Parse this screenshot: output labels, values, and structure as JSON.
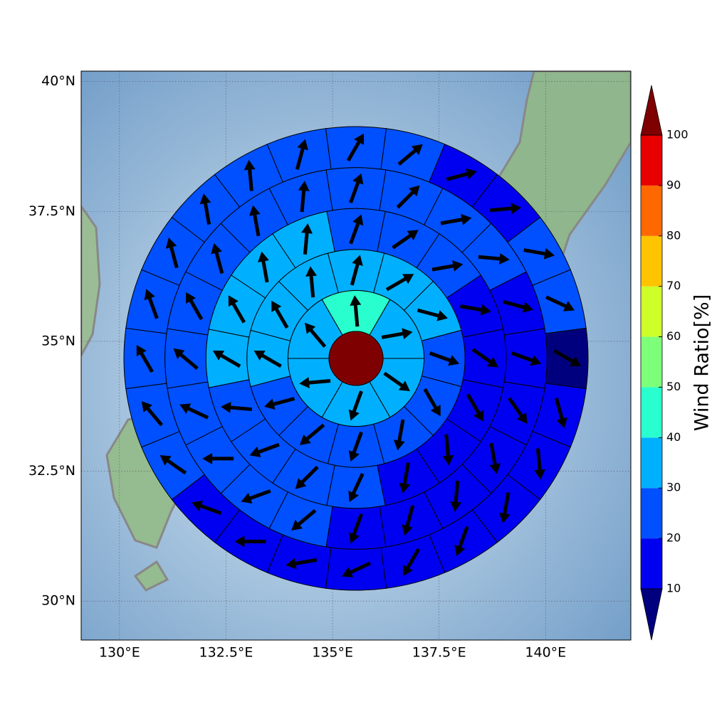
{
  "chart_data": {
    "type": "polar_wind_map",
    "xlim": [
      129.1,
      142.0
    ],
    "ylim": [
      29.25,
      40.2
    ],
    "xticks": [
      {
        "value": 130,
        "label": "130°E"
      },
      {
        "value": 132.5,
        "label": "132.5°E"
      },
      {
        "value": 135,
        "label": "135°E"
      },
      {
        "value": 137.5,
        "label": "137.5°E"
      },
      {
        "value": 140,
        "label": "140°E"
      }
    ],
    "yticks": [
      {
        "value": 30,
        "label": "30°N"
      },
      {
        "value": 32.5,
        "label": "32.5°N"
      },
      {
        "value": 35,
        "label": "35°N"
      },
      {
        "value": 37.5,
        "label": "37.5°N"
      },
      {
        "value": 40,
        "label": "40°N"
      }
    ],
    "grid": true,
    "center_value": 105,
    "rings": [
      {
        "values": [
          45,
          35,
          35,
          35,
          35,
          35
        ],
        "directions": [
          355,
          80,
          125,
          200,
          265,
          320
        ]
      },
      {
        "values": [
          35,
          35,
          35,
          25,
          25,
          25,
          25,
          25,
          25,
          35,
          35,
          35
        ],
        "directions": [
          15,
          60,
          105,
          110,
          150,
          190,
          200,
          230,
          255,
          300,
          330,
          355
        ]
      },
      {
        "values": [
          25,
          25,
          25,
          15,
          15,
          15,
          15,
          15,
          25,
          25,
          25,
          25,
          35,
          35,
          35,
          35
        ],
        "directions": [
          20,
          55,
          80,
          100,
          125,
          150,
          175,
          190,
          205,
          225,
          250,
          275,
          300,
          330,
          350,
          5
        ]
      },
      {
        "values": [
          25,
          25,
          25,
          25,
          15,
          15,
          15,
          15,
          15,
          15,
          15,
          25,
          25,
          25,
          25,
          25,
          25,
          25,
          25,
          25
        ],
        "directions": [
          20,
          45,
          80,
          95,
          105,
          110,
          145,
          170,
          185,
          195,
          200,
          230,
          250,
          270,
          295,
          310,
          330,
          345,
          350,
          5
        ]
      },
      {
        "values": [
          25,
          25,
          15,
          15,
          25,
          25,
          5,
          15,
          15,
          15,
          15,
          15,
          15,
          15,
          15,
          15,
          25,
          25,
          25,
          25,
          25,
          25,
          25,
          25
        ],
        "directions": [
          30,
          50,
          75,
          85,
          100,
          115,
          120,
          165,
          175,
          190,
          200,
          210,
          245,
          260,
          270,
          290,
          305,
          320,
          330,
          340,
          345,
          350,
          355,
          15
        ]
      }
    ],
    "colorbar": {
      "label": "Wind Ratio[%]",
      "ticks": [
        10,
        20,
        30,
        40,
        50,
        60,
        70,
        80,
        90,
        100
      ],
      "colors": [
        "#0000f0",
        "#0050ff",
        "#00b0ff",
        "#29ffce",
        "#7dff7a",
        "#ceff29",
        "#ffc400",
        "#ff6800",
        "#e80000"
      ],
      "under_color": "#00007f",
      "over_color": "#7f0000"
    }
  }
}
